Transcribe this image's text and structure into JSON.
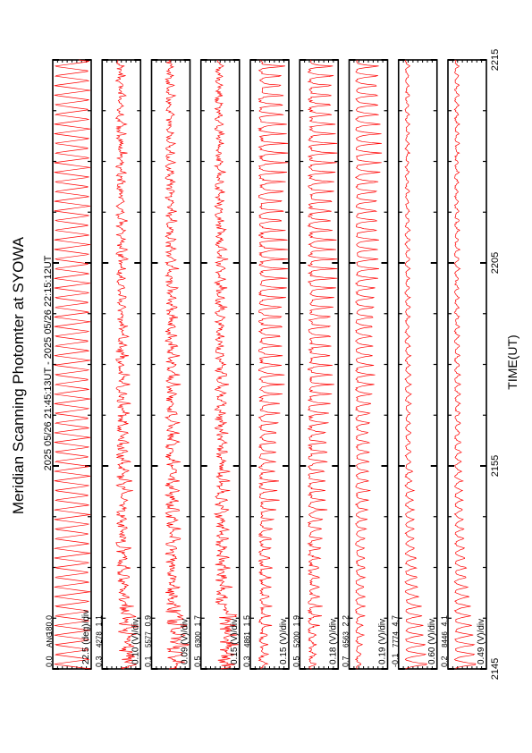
{
  "title": "Meridian Scanning Photomter at SYOWA",
  "time_range": "2025 05/26 21:45:13UT - 2025 05/26 22:15:12UT",
  "xlabel": "TIME(UT)",
  "colors": {
    "trace": "#ff0000",
    "axes": "#000000",
    "background": "#ffffff"
  },
  "chart_data": {
    "type": "line",
    "orientation": "rotated-90",
    "x_ticks": [
      "2145",
      "2155",
      "2205",
      "2215"
    ],
    "xlim": [
      0,
      30
    ],
    "x_unit": "minutes after 2145 UT",
    "panels": [
      {
        "channel_label": "ANG",
        "scale": "22.5 (deg)/div",
        "ymin": "0.0",
        "ymax": "180.0",
        "pattern": "scan"
      },
      {
        "channel_label": "4278",
        "scale": "0.10 (V)/div",
        "ymin": "0.3",
        "ymax": "1.1",
        "pattern": "noise"
      },
      {
        "channel_label": "5577",
        "scale": "0.09 (V)/div",
        "ymin": "0.1",
        "ymax": "0.9",
        "pattern": "noise"
      },
      {
        "channel_label": "6300",
        "scale": "0.15 (V)/div",
        "ymin": "0.5",
        "ymax": "1.7",
        "pattern": "noise"
      },
      {
        "channel_label": "4861",
        "scale": "0.15 (V)/div",
        "ymin": "0.3",
        "ymax": "1.5",
        "pattern": "grow"
      },
      {
        "channel_label": "5200",
        "scale": "0.18 (V)/div",
        "ymin": "0.5",
        "ymax": "1.9",
        "pattern": "grow"
      },
      {
        "channel_label": "6563",
        "scale": "0.19 (V)/div",
        "ymin": "0.7",
        "ymax": "2.2",
        "pattern": "wave"
      },
      {
        "channel_label": "7774",
        "scale": "0.60 (V)/div",
        "ymin": "-0.1",
        "ymax": "4.7",
        "pattern": "decay"
      },
      {
        "channel_label": "8446",
        "scale": "0.49 (V)/div",
        "ymin": "0.2",
        "ymax": "4.1",
        "pattern": "decay"
      }
    ]
  }
}
